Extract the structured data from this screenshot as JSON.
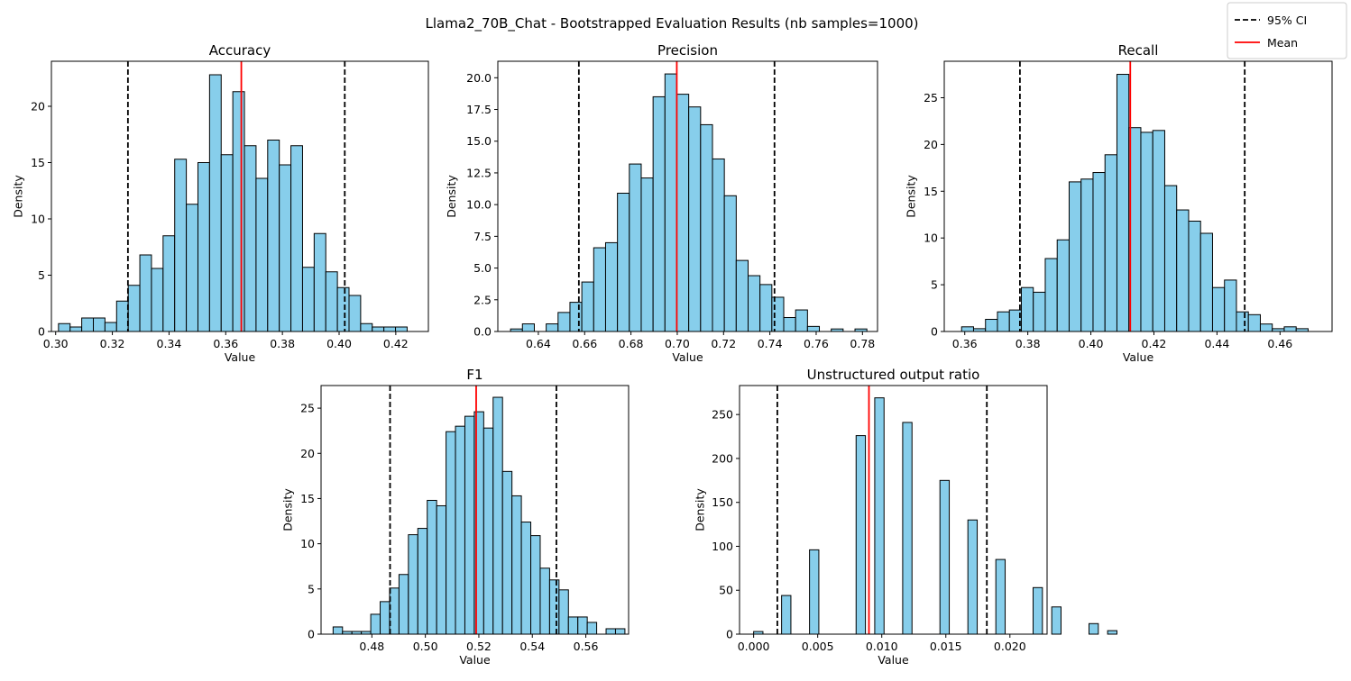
{
  "figure": {
    "title": "Llama2_70B_Chat - Bootstrapped Evaluation Results (nb samples=1000)",
    "legend": {
      "position": "top-right",
      "entries": [
        {
          "label": "95% CI",
          "style": "dashed",
          "color": "#000000"
        },
        {
          "label": "Mean",
          "style": "solid",
          "color": "#ff0000"
        }
      ]
    },
    "colors": {
      "bar_fill": "#87ceeb",
      "bar_edge": "#000000",
      "mean_line": "#ff0000",
      "ci_line": "#000000"
    }
  },
  "chart_data": [
    {
      "type": "bar",
      "title": "Accuracy",
      "xlabel": "Value",
      "ylabel": "Density",
      "xlim": [
        0.2985,
        0.4315
      ],
      "ylim": [
        0,
        24
      ],
      "xticks": [
        0.3,
        0.32,
        0.34,
        0.36,
        0.38,
        0.4,
        0.42
      ],
      "xtick_labels": [
        "0.30",
        "0.32",
        "0.34",
        "0.36",
        "0.38",
        "0.40",
        "0.42"
      ],
      "yticks": [
        0,
        5,
        10,
        15,
        20
      ],
      "ytick_labels": [
        "0",
        "5",
        "10",
        "15",
        "20"
      ],
      "bin_start": 0.301,
      "bin_width": 0.0041,
      "values": [
        0.7,
        0.4,
        1.2,
        1.2,
        0.8,
        2.7,
        4.1,
        6.8,
        5.6,
        8.5,
        15.3,
        11.3,
        15.0,
        22.8,
        15.7,
        21.3,
        16.5,
        13.6,
        17.0,
        14.8,
        16.5,
        5.7,
        8.7,
        5.3,
        3.9,
        3.2,
        0.7,
        0.4,
        0.4,
        0.4
      ],
      "mean": 0.3655,
      "ci": [
        0.3255,
        0.402
      ]
    },
    {
      "type": "bar",
      "title": "Precision",
      "xlabel": "Value",
      "ylabel": "Density",
      "xlim": [
        0.6225,
        0.7865
      ],
      "ylim": [
        0,
        21.3
      ],
      "xticks": [
        0.64,
        0.66,
        0.68,
        0.7,
        0.72,
        0.74,
        0.76,
        0.78
      ],
      "xtick_labels": [
        "0.64",
        "0.66",
        "0.68",
        "0.70",
        "0.72",
        "0.74",
        "0.76",
        "0.78"
      ],
      "yticks": [
        0.0,
        2.5,
        5.0,
        7.5,
        10.0,
        12.5,
        15.0,
        17.5,
        20.0
      ],
      "ytick_labels": [
        "0.0",
        "2.5",
        "5.0",
        "7.5",
        "10.0",
        "12.5",
        "15.0",
        "17.5",
        "20.0"
      ],
      "bin_start": 0.628,
      "bin_width": 0.00513,
      "values": [
        0.2,
        0.6,
        0.0,
        0.6,
        1.5,
        2.3,
        3.9,
        6.6,
        7.0,
        10.9,
        13.2,
        12.1,
        18.5,
        20.3,
        18.7,
        17.7,
        16.3,
        13.6,
        10.7,
        5.6,
        4.4,
        3.7,
        2.7,
        1.1,
        1.7,
        0.4,
        0.0,
        0.2,
        0.0,
        0.2
      ],
      "mean": 0.6998,
      "ci": [
        0.6575,
        0.742
      ]
    },
    {
      "type": "bar",
      "title": "Recall",
      "xlabel": "Value",
      "ylabel": "Density",
      "xlim": [
        0.3535,
        0.4765
      ],
      "ylim": [
        0,
        28.9
      ],
      "xticks": [
        0.36,
        0.38,
        0.4,
        0.42,
        0.44,
        0.46
      ],
      "xtick_labels": [
        "0.36",
        "0.38",
        "0.40",
        "0.42",
        "0.44",
        "0.46"
      ],
      "yticks": [
        0,
        5,
        10,
        15,
        20,
        25
      ],
      "ytick_labels": [
        "0",
        "5",
        "10",
        "15",
        "20",
        "25"
      ],
      "bin_start": 0.359,
      "bin_width": 0.00379,
      "values": [
        0.5,
        0.3,
        1.3,
        2.1,
        2.3,
        4.7,
        4.2,
        7.8,
        9.8,
        16.0,
        16.3,
        17.0,
        18.9,
        27.5,
        21.8,
        21.3,
        21.5,
        15.6,
        13.0,
        11.8,
        10.5,
        4.7,
        5.5,
        2.1,
        1.8,
        0.8,
        0.3,
        0.5,
        0.3,
        0.0
      ],
      "mean": 0.4125,
      "ci": [
        0.3775,
        0.4488
      ]
    },
    {
      "type": "bar",
      "title": "F1",
      "xlabel": "Value",
      "ylabel": "Density",
      "xlim": [
        0.461,
        0.576
      ],
      "ylim": [
        0,
        27.5
      ],
      "xticks": [
        0.48,
        0.5,
        0.52,
        0.54,
        0.56
      ],
      "xtick_labels": [
        "0.48",
        "0.50",
        "0.52",
        "0.54",
        "0.56"
      ],
      "yticks": [
        0,
        5,
        10,
        15,
        20,
        25
      ],
      "ytick_labels": [
        "0",
        "5",
        "10",
        "15",
        "20",
        "25"
      ],
      "bin_start": 0.4655,
      "bin_width": 0.00352,
      "values": [
        0.8,
        0.3,
        0.3,
        0.3,
        2.2,
        3.6,
        5.1,
        6.6,
        11.0,
        11.7,
        14.8,
        14.2,
        22.4,
        23.0,
        24.1,
        24.6,
        22.8,
        26.2,
        18.0,
        15.3,
        12.4,
        10.9,
        7.3,
        6.0,
        4.9,
        1.9,
        1.9,
        1.3,
        0.0,
        0.6,
        0.6
      ],
      "mean": 0.519,
      "ci": [
        0.4868,
        0.549
      ]
    },
    {
      "type": "bar",
      "title": "Unstructured output ratio",
      "xlabel": "Value",
      "ylabel": "Density",
      "xlim": [
        -0.0011,
        0.0229
      ],
      "ylim": [
        0,
        283
      ],
      "xticks": [
        0.0,
        0.005,
        0.01,
        0.015,
        0.02
      ],
      "xtick_labels": [
        "0.000",
        "0.005",
        "0.010",
        "0.015",
        "0.020"
      ],
      "yticks": [
        0,
        50,
        100,
        150,
        200,
        250
      ],
      "yticks_labels_note": "",
      "ytick_labels": [
        "0",
        "50",
        "100",
        "150",
        "200",
        "250"
      ],
      "bin_start": 0.0,
      "bin_width": 0.000727,
      "values": [
        3,
        0,
        0,
        44,
        0,
        0,
        96,
        0,
        0,
        0,
        0,
        226,
        0,
        269,
        0,
        0,
        241,
        0,
        0,
        0,
        175,
        0,
        0,
        130,
        0,
        0,
        85,
        0,
        0,
        0,
        53,
        0,
        31,
        0,
        0,
        0,
        12,
        0,
        4
      ],
      "mean": 0.009,
      "ci": [
        0.00185,
        0.0182
      ]
    }
  ]
}
